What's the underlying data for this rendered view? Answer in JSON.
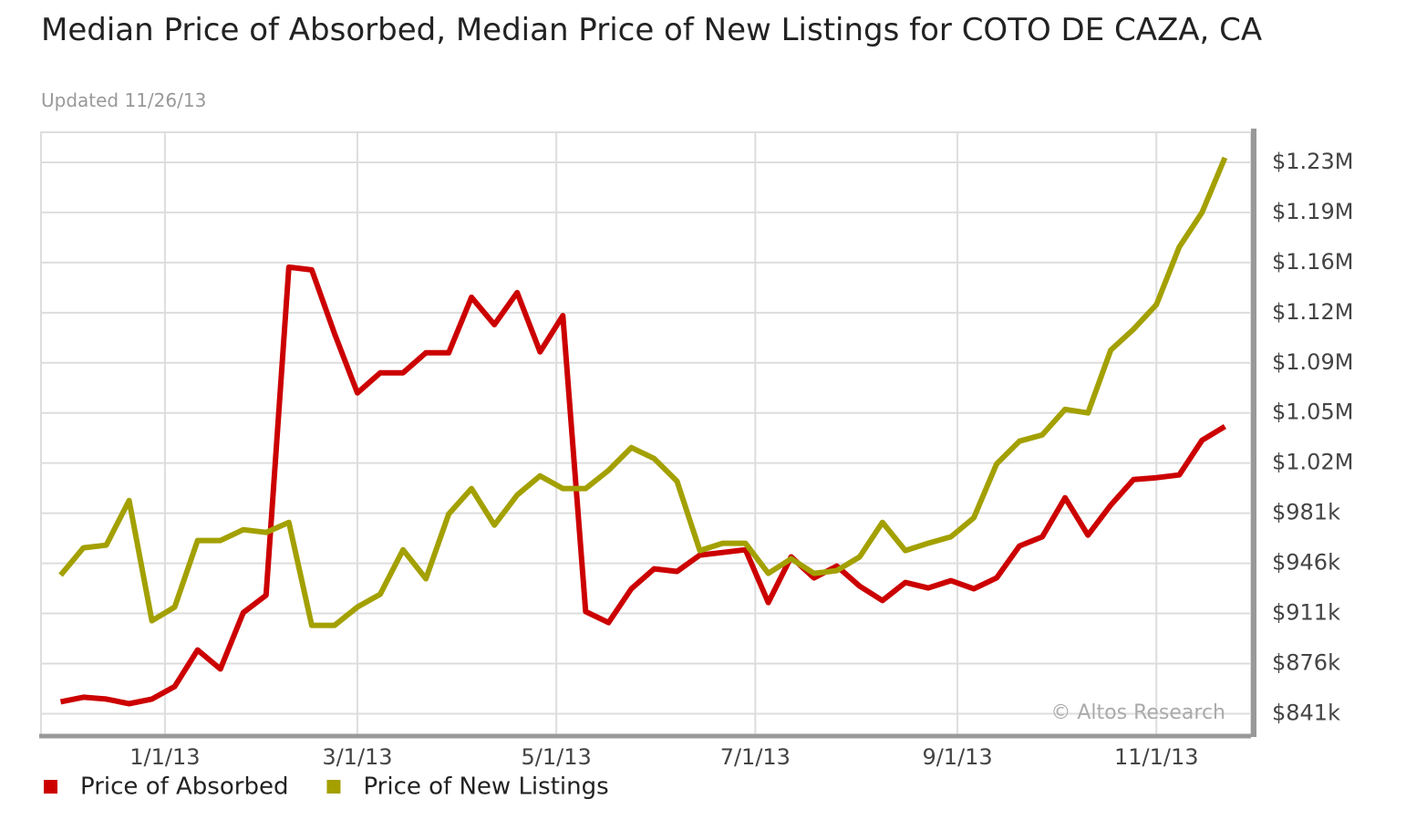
{
  "chart_data": {
    "type": "line",
    "title": "Median Price of Absorbed, Median Price of New Listings for COTO DE CAZA, CA",
    "subtitle": "Updated 11/26/13",
    "annotation": "© Altos Research",
    "x": [
      "11/30/12",
      "12/7/12",
      "12/14/12",
      "12/21/12",
      "12/28/12",
      "1/4/13",
      "1/11/13",
      "1/18/13",
      "1/25/13",
      "2/1/13",
      "2/8/13",
      "2/15/13",
      "2/22/13",
      "3/1/13",
      "3/8/13",
      "3/15/13",
      "3/22/13",
      "3/29/13",
      "4/5/13",
      "4/12/13",
      "4/19/13",
      "4/26/13",
      "5/3/13",
      "5/10/13",
      "5/17/13",
      "5/24/13",
      "5/31/13",
      "6/7/13",
      "6/14/13",
      "6/21/13",
      "6/28/13",
      "7/5/13",
      "7/12/13",
      "7/19/13",
      "7/26/13",
      "8/2/13",
      "8/9/13",
      "8/16/13",
      "8/23/13",
      "8/30/13",
      "9/6/13",
      "9/13/13",
      "9/20/13",
      "9/27/13",
      "10/4/13",
      "10/11/13",
      "10/18/13",
      "10/25/13",
      "11/1/13",
      "11/8/13",
      "11/15/13",
      "11/22/13"
    ],
    "series": [
      {
        "name": "Price of Absorbed",
        "color": "#cc0000",
        "values": [
          849300,
          852500,
          851200,
          848000,
          851200,
          860000,
          885500,
          872200,
          911600,
          923700,
          1152800,
          1150900,
          1106400,
          1065000,
          1079000,
          1079000,
          1093000,
          1093000,
          1131800,
          1112700,
          1135000,
          1093600,
          1119000,
          912300,
          904600,
          928200,
          942200,
          940300,
          951700,
          953600,
          955500,
          918600,
          950500,
          935800,
          944100,
          930100,
          920000,
          932600,
          928800,
          933900,
          928200,
          935800,
          958100,
          964500,
          991800,
          965700,
          986700,
          1004500,
          1005800,
          1007700,
          1031900,
          1041500
        ]
      },
      {
        "name": "Price of New Listings",
        "color": "#a3a000",
        "values": [
          937700,
          956800,
          958700,
          989900,
          905900,
          915500,
          961900,
          961900,
          969500,
          967600,
          974600,
          902700,
          902700,
          915500,
          924400,
          955500,
          935200,
          980400,
          998200,
          972700,
          993700,
          1007100,
          998200,
          998200,
          1010900,
          1026800,
          1019200,
          1003300,
          954900,
          960000,
          960000,
          939000,
          949200,
          939000,
          940900,
          950500,
          974600,
          954900,
          960000,
          964500,
          977800,
          1015400,
          1031300,
          1035700,
          1053500,
          1051000,
          1094900,
          1109500,
          1126700,
          1166800,
          1191000,
          1229200
        ]
      }
    ],
    "xlim": [
      "11/24/12",
      "11/30/13"
    ],
    "xticks": [
      "1/1/13",
      "3/1/13",
      "5/1/13",
      "7/1/13",
      "9/1/13",
      "11/1/13"
    ],
    "ylim": [
      826000,
      1247000
    ],
    "yticks": [
      {
        "value": 841000,
        "label": "$841k"
      },
      {
        "value": 876000,
        "label": "$876k"
      },
      {
        "value": 911000,
        "label": "$911k"
      },
      {
        "value": 946000,
        "label": "$946k"
      },
      {
        "value": 981000,
        "label": "$981k"
      },
      {
        "value": 1016000,
        "label": "$1.02M"
      },
      {
        "value": 1051000,
        "label": "$1.05M"
      },
      {
        "value": 1086000,
        "label": "$1.09M"
      },
      {
        "value": 1121000,
        "label": "$1.12M"
      },
      {
        "value": 1156000,
        "label": "$1.16M"
      },
      {
        "value": 1191000,
        "label": "$1.19M"
      },
      {
        "value": 1226000,
        "label": "$1.23M"
      }
    ],
    "grid": true,
    "legend": "bottom-left"
  }
}
